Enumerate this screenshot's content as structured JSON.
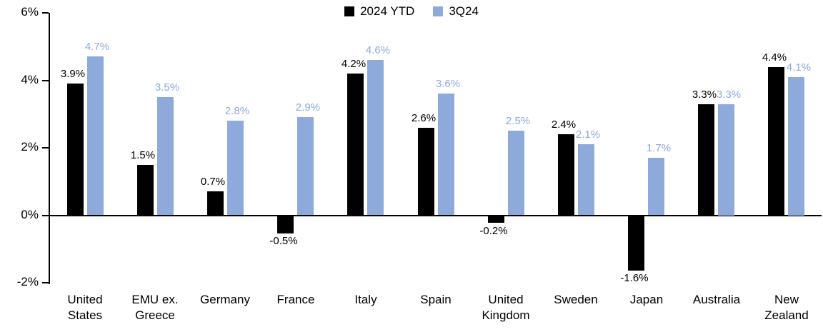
{
  "chart_data": {
    "type": "bar",
    "title": "",
    "xlabel": "",
    "ylabel": "",
    "categories": [
      "United States",
      "EMU ex. Greece",
      "Germany",
      "France",
      "Italy",
      "Spain",
      "United Kingdom",
      "Sweden",
      "Japan",
      "Australia",
      "New Zealand"
    ],
    "series": [
      {
        "name": "2024 YTD",
        "color": "#000000",
        "values": [
          3.9,
          1.5,
          0.7,
          -0.5,
          4.2,
          2.6,
          -0.2,
          2.4,
          -1.6,
          3.3,
          4.4
        ],
        "labels": [
          "3.9%",
          "1.5%",
          "0.7%",
          "-0.5%",
          "4.2%",
          "2.6%",
          "-0.2%",
          "2.4%",
          "-1.6%",
          "3.3%",
          "4.4%"
        ]
      },
      {
        "name": "3Q24",
        "color": "#8EAADB",
        "values": [
          4.7,
          3.5,
          2.8,
          2.9,
          4.6,
          3.6,
          2.5,
          2.1,
          1.7,
          3.3,
          4.1
        ],
        "labels": [
          "4.7%",
          "3.5%",
          "2.8%",
          "2.9%",
          "4.6%",
          "3.6%",
          "2.5%",
          "2.1%",
          "1.7%",
          "3.3%",
          "4.1%"
        ]
      }
    ],
    "ylim": [
      -2,
      6
    ],
    "yticks": [
      -2,
      0,
      2,
      4,
      6
    ],
    "ytick_labels": [
      "-2%",
      "0%",
      "2%",
      "4%",
      "6%"
    ],
    "legend_position": "top-center",
    "grid": false,
    "axis_color": "#000000"
  }
}
